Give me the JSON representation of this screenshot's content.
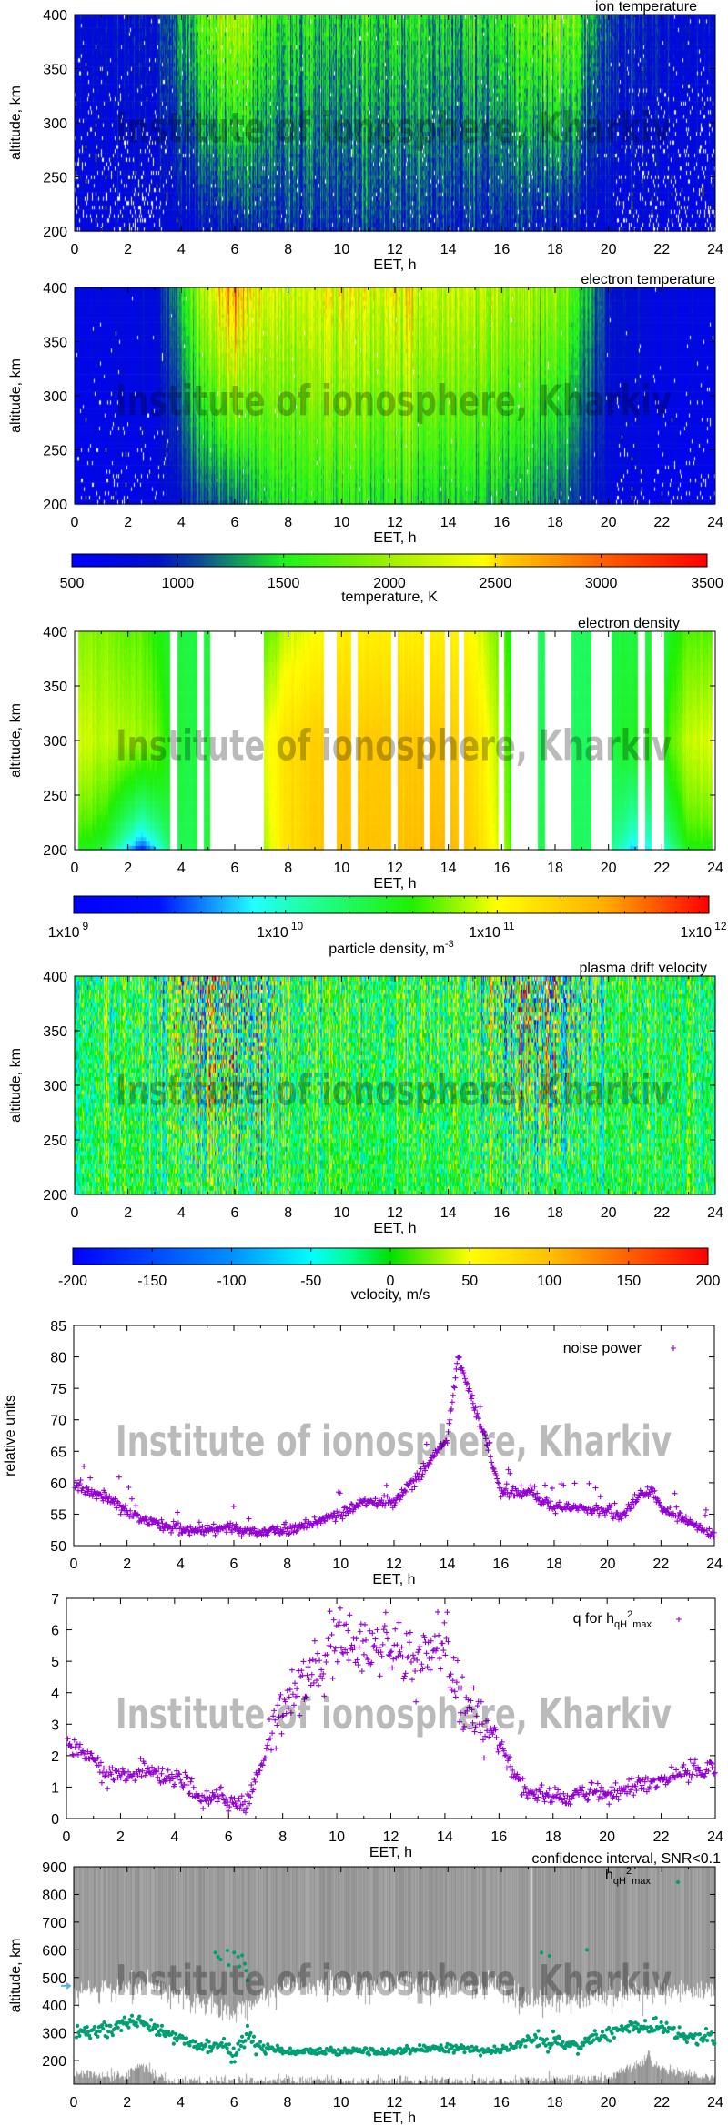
{
  "watermark": "Institute of ionosphere, Kharkiv",
  "colorbars": [
    {
      "caption": "temperature, K",
      "scale": "linear",
      "range": [
        500,
        3500
      ],
      "ticks": [
        {
          "label": "500",
          "value": 500
        },
        {
          "label": "1000",
          "value": 1000
        },
        {
          "label": "1500",
          "value": 1500
        },
        {
          "label": "2000",
          "value": 2000
        },
        {
          "label": "2500",
          "value": 2500
        },
        {
          "label": "3000",
          "value": 3000
        },
        {
          "label": "3500",
          "value": 3500
        }
      ],
      "stops": [
        [
          500,
          "#0000ff"
        ],
        [
          900,
          "#0010c8"
        ],
        [
          1100,
          "#0c4a98"
        ],
        [
          1500,
          "#1cf41c"
        ],
        [
          2000,
          "#a0f000"
        ],
        [
          2450,
          "#ffff00"
        ],
        [
          2550,
          "#ffcc00"
        ],
        [
          3000,
          "#ff6000"
        ],
        [
          3500,
          "#ff0000"
        ]
      ]
    },
    {
      "caption": "particle density, m",
      "caption_sup": "-3",
      "scale": "log",
      "range": [
        1000000000.0,
        1000000000000.0
      ],
      "ticks": [
        {
          "base": "1x10",
          "exp": "9",
          "value": 9
        },
        {
          "base": "1x10",
          "exp": "10",
          "value": 10
        },
        {
          "base": "1x10",
          "exp": "11",
          "value": 11
        },
        {
          "base": "1x10",
          "exp": "12",
          "value": 12
        }
      ],
      "stops": [
        [
          9,
          "#0000ff"
        ],
        [
          9.4,
          "#0010ff"
        ],
        [
          9.85,
          "#20ffff"
        ],
        [
          10.1,
          "#20ffa0"
        ],
        [
          10.6,
          "#20f000"
        ],
        [
          11.0,
          "#ffff00"
        ],
        [
          11.5,
          "#ffb000"
        ],
        [
          12,
          "#ff0000"
        ]
      ]
    },
    {
      "caption": "velocity, m/s",
      "scale": "linear",
      "range": [
        -200,
        200
      ],
      "ticks": [
        {
          "label": "-200",
          "value": -200
        },
        {
          "label": "-150",
          "value": -150
        },
        {
          "label": "-100",
          "value": -100
        },
        {
          "label": "-50",
          "value": -50
        },
        {
          "label": "0",
          "value": 0
        },
        {
          "label": "50",
          "value": 50
        },
        {
          "label": "100",
          "value": 100
        },
        {
          "label": "150",
          "value": 150
        },
        {
          "label": "200",
          "value": 200
        }
      ],
      "stops": [
        [
          -200,
          "#0000ff"
        ],
        [
          -100,
          "#0090ff"
        ],
        [
          -50,
          "#00ffff"
        ],
        [
          -25,
          "#00ff90"
        ],
        [
          0,
          "#00e000"
        ],
        [
          50,
          "#ffff00"
        ],
        [
          100,
          "#ffc000"
        ],
        [
          200,
          "#ff0000"
        ]
      ]
    }
  ],
  "chart_data": [
    {
      "type": "heatmap",
      "title": "ion temperature",
      "xlabel": "EET, h",
      "ylabel": "altitude, km",
      "xlim": [
        0,
        24
      ],
      "ylim": [
        200,
        400
      ],
      "xticks": [
        "0",
        "2",
        "4",
        "6",
        "8",
        "10",
        "12",
        "14",
        "16",
        "18",
        "20",
        "22",
        "24"
      ],
      "yticks": [
        "200",
        "250",
        "300",
        "350",
        "400"
      ],
      "colorbar": 0,
      "profile_hours": [
        0,
        2,
        3,
        4,
        5,
        6,
        7,
        8,
        10,
        12,
        14,
        16,
        17,
        18,
        19,
        20,
        22,
        24
      ],
      "value_at_200km": [
        700,
        750,
        750,
        800,
        900,
        950,
        1000,
        1000,
        1000,
        1000,
        1000,
        950,
        950,
        900,
        850,
        750,
        700,
        700
      ],
      "value_at_400km": [
        800,
        850,
        900,
        1300,
        1800,
        2200,
        1700,
        1500,
        1450,
        1450,
        1450,
        1500,
        1700,
        1900,
        1600,
        1000,
        850,
        800
      ]
    },
    {
      "type": "heatmap",
      "title": "electron temperature",
      "xlabel": "EET, h",
      "ylabel": "altitude, km",
      "xlim": [
        0,
        24
      ],
      "ylim": [
        200,
        400
      ],
      "xticks": [
        "0",
        "2",
        "4",
        "6",
        "8",
        "10",
        "12",
        "14",
        "16",
        "18",
        "20",
        "22",
        "24"
      ],
      "yticks": [
        "200",
        "250",
        "300",
        "350",
        "400"
      ],
      "colorbar": 0,
      "profile_hours": [
        0,
        2,
        3,
        4,
        5,
        6,
        7,
        8,
        10,
        12,
        14,
        16,
        17,
        18,
        19,
        20,
        22,
        24
      ],
      "value_at_200km": [
        650,
        700,
        700,
        900,
        1100,
        1200,
        1400,
        1500,
        1550,
        1500,
        1450,
        1400,
        1350,
        1200,
        1000,
        750,
        650,
        650
      ],
      "value_at_400km": [
        700,
        750,
        800,
        1400,
        2200,
        2900,
        2300,
        2200,
        2350,
        2300,
        2200,
        2100,
        2100,
        2000,
        1500,
        900,
        750,
        700
      ]
    },
    {
      "type": "heatmap",
      "title": "electron density",
      "xlabel": "EET, h",
      "ylabel": "altitude, km",
      "xlim": [
        0,
        24
      ],
      "ylim": [
        200,
        400
      ],
      "xticks": [
        "0",
        "2",
        "4",
        "6",
        "8",
        "10",
        "12",
        "14",
        "16",
        "18",
        "20",
        "22",
        "24"
      ],
      "yticks": [
        "200",
        "250",
        "300",
        "350",
        "400"
      ],
      "colorbar": 1,
      "value_unit": "log10 m^-3",
      "profile_hours": [
        0,
        1,
        2,
        2.5,
        3,
        3.5,
        4,
        5,
        7,
        8,
        9,
        10,
        11,
        12,
        13,
        14,
        15,
        16,
        17,
        18,
        19,
        20,
        21,
        22,
        23,
        24
      ],
      "value_at_200km": [
        10.5,
        10.4,
        9.6,
        9.2,
        9.6,
        10.2,
        10.3,
        10.4,
        10.8,
        11.2,
        11.35,
        11.4,
        11.4,
        11.4,
        11.45,
        11.5,
        11.3,
        10.9,
        10.4,
        10.3,
        10.3,
        10.2,
        9.6,
        9.8,
        10.5,
        10.5
      ],
      "value_at_300km": [
        10.95,
        10.9,
        10.85,
        10.8,
        10.8,
        10.6,
        10.4,
        10.4,
        10.95,
        11.2,
        11.3,
        11.35,
        11.35,
        11.35,
        11.35,
        11.35,
        11.2,
        10.8,
        10.35,
        10.3,
        10.3,
        10.4,
        10.5,
        10.6,
        10.9,
        10.95
      ],
      "value_at_400km": [
        10.8,
        10.8,
        10.7,
        10.7,
        10.6,
        10.5,
        10.4,
        10.4,
        10.7,
        10.9,
        11.0,
        11.1,
        11.1,
        11.1,
        11.1,
        11.1,
        11.0,
        10.7,
        10.3,
        10.3,
        10.3,
        10.4,
        10.4,
        10.4,
        10.7,
        10.7
      ],
      "data_intervals_h": [
        [
          0.12,
          3.58
        ],
        [
          3.85,
          4.6
        ],
        [
          4.84,
          5.09
        ],
        [
          7.1,
          9.33
        ],
        [
          9.82,
          10.37
        ],
        [
          10.6,
          11.87
        ],
        [
          12.1,
          13.1
        ],
        [
          13.3,
          13.87
        ],
        [
          14.07,
          14.37
        ],
        [
          14.6,
          15.87
        ],
        [
          16.1,
          16.36
        ],
        [
          17.34,
          17.62
        ],
        [
          18.6,
          19.37
        ],
        [
          20.1,
          21.1
        ],
        [
          21.36,
          21.62
        ],
        [
          22.1,
          23.9
        ]
      ]
    },
    {
      "type": "heatmap",
      "title": "plasma drift velocity",
      "xlabel": "EET, h",
      "ylabel": "altitude, km",
      "xlim": [
        0,
        24
      ],
      "ylim": [
        200,
        400
      ],
      "xticks": [
        "0",
        "2",
        "4",
        "6",
        "8",
        "10",
        "12",
        "14",
        "16",
        "18",
        "20",
        "22",
        "24"
      ],
      "yticks": [
        "200",
        "250",
        "300",
        "350",
        "400"
      ],
      "colorbar": 2,
      "profile_hours": [
        0,
        3,
        4,
        5,
        6,
        7,
        8,
        12,
        15,
        16,
        17,
        18,
        19,
        20,
        22,
        24
      ],
      "mean_value": [
        -10,
        -10,
        -15,
        -10,
        0,
        0,
        -5,
        -5,
        -10,
        -15,
        -15,
        -10,
        -10,
        -10,
        -10,
        -10
      ],
      "spread_at_200km": [
        35,
        40,
        45,
        50,
        55,
        50,
        35,
        30,
        35,
        45,
        45,
        40,
        35,
        35,
        40,
        35
      ],
      "spread_at_400km": [
        45,
        60,
        110,
        160,
        160,
        120,
        60,
        50,
        60,
        120,
        150,
        160,
        110,
        50,
        45,
        45
      ]
    },
    {
      "type": "scatter",
      "legend": "noise power",
      "legend_position": "top-right",
      "xlabel": "EET, h",
      "ylabel": "relative units",
      "xlim": [
        0,
        24
      ],
      "ylim": [
        50,
        85
      ],
      "xticks": [
        "0",
        "2",
        "4",
        "6",
        "8",
        "10",
        "12",
        "14",
        "16",
        "18",
        "20",
        "22",
        "24"
      ],
      "yticks": [
        "50",
        "55",
        "60",
        "65",
        "70",
        "75",
        "80",
        "85"
      ],
      "color": "#9400d3",
      "marker": "plus",
      "x": [
        0,
        1,
        2,
        3,
        4,
        5,
        6,
        7,
        8,
        9,
        10,
        11,
        12,
        13,
        14,
        14.4,
        15,
        15.5,
        16,
        17,
        18,
        19,
        20,
        20.5,
        21,
        21.7,
        22,
        23,
        24
      ],
      "y": [
        59.5,
        58,
        55.5,
        53.5,
        52.5,
        52.5,
        52.8,
        52,
        52.5,
        53.5,
        55,
        57,
        57,
        61.5,
        67,
        80,
        72,
        66,
        58.5,
        58.5,
        56,
        56,
        55.5,
        55,
        57,
        59,
        56,
        54,
        51.5
      ]
    },
    {
      "type": "scatter",
      "legend": {
        "text": "q for h",
        "sub": "qH",
        "sup": "2",
        "sub2": "max"
      },
      "legend_position": "top-right",
      "xlabel": "EET, h",
      "ylabel": "",
      "xlim": [
        0,
        24
      ],
      "ylim": [
        0,
        7
      ],
      "xticks": [
        "0",
        "2",
        "4",
        "6",
        "8",
        "10",
        "12",
        "14",
        "16",
        "18",
        "20",
        "22",
        "24"
      ],
      "yticks": [
        "0",
        "1",
        "2",
        "3",
        "4",
        "5",
        "6",
        "7"
      ],
      "color": "#9400d3",
      "marker": "plus",
      "x": [
        0,
        1,
        1.5,
        2,
        3,
        4,
        4.5,
        5,
        5.7,
        6.3,
        6.7,
        7,
        7.5,
        8,
        9,
        10,
        11,
        12,
        12.5,
        13,
        13.5,
        14,
        14.5,
        15,
        16,
        16.5,
        17,
        18,
        18.5,
        19,
        20,
        21,
        22,
        23,
        24
      ],
      "y": [
        2.4,
        1.9,
        1.4,
        1.3,
        1.5,
        1.2,
        1.2,
        0.5,
        0.8,
        0.4,
        0.5,
        1.2,
        2.5,
        3.5,
        4.6,
        5.5,
        5.5,
        5.6,
        5.0,
        4.9,
        5.5,
        5.8,
        4.0,
        3.3,
        2.5,
        1.5,
        0.8,
        0.7,
        0.55,
        0.9,
        0.8,
        1.0,
        1.2,
        1.5,
        1.6
      ]
    },
    {
      "type": "scatter",
      "title": "confidence interval, SNR<0.1",
      "legend": {
        "text": "h",
        "sub": "qH",
        "sup": "2",
        "sub2": "max"
      },
      "legend_position": "top-right",
      "xlabel": "EET, h",
      "ylabel": "altitude, km",
      "xlim": [
        0,
        24
      ],
      "ylim": [
        115,
        900
      ],
      "xticks": [
        "0",
        "2",
        "4",
        "6",
        "8",
        "10",
        "12",
        "14",
        "16",
        "18",
        "20",
        "22",
        "24"
      ],
      "yticks": [
        "200",
        "300",
        "400",
        "500",
        "600",
        "700",
        "800",
        "900"
      ],
      "color": "#009e73",
      "marker": "dot",
      "band_color": "#999999",
      "x": [
        0,
        1,
        2,
        2.5,
        3,
        4,
        5,
        5.5,
        6,
        6.5,
        7,
        8,
        10,
        12,
        14,
        16,
        17,
        18,
        19,
        19.5,
        20,
        21,
        22,
        23,
        24
      ],
      "y": [
        300,
        300,
        330,
        340,
        320,
        280,
        250,
        260,
        225,
        300,
        250,
        232,
        235,
        235,
        245,
        235,
        270,
        270,
        250,
        290,
        300,
        320,
        320,
        285,
        280
      ],
      "outliers": [
        [
          5.3,
          590
        ],
        [
          5.4,
          575
        ],
        [
          5.5,
          565
        ],
        [
          5.75,
          598
        ],
        [
          5.8,
          545
        ],
        [
          6.0,
          590
        ],
        [
          6.15,
          575
        ],
        [
          6.2,
          540
        ],
        [
          6.3,
          580
        ],
        [
          6.4,
          550
        ],
        [
          6.45,
          525
        ],
        [
          6.5,
          490
        ],
        [
          17.5,
          590
        ],
        [
          17.8,
          578
        ],
        [
          19.2,
          600
        ]
      ],
      "upper_band_lower_edge_hours": [
        0,
        2,
        3,
        4,
        5,
        6,
        7,
        8,
        10,
        12,
        14,
        16,
        17,
        18,
        19,
        20,
        22,
        24
      ],
      "upper_band_lower_edge_km": [
        450,
        470,
        480,
        440,
        400,
        380,
        430,
        470,
        480,
        480,
        460,
        470,
        420,
        410,
        420,
        450,
        450,
        450
      ],
      "lower_band_upper_edge_hours": [
        0,
        2,
        2.5,
        3,
        3.5,
        16,
        20,
        21,
        21.5,
        22,
        23,
        24
      ],
      "lower_band_upper_edge_km": [
        150,
        145,
        190,
        150,
        128,
        125,
        140,
        185,
        210,
        170,
        150,
        140
      ],
      "marker_arrow_km": 470
    }
  ]
}
